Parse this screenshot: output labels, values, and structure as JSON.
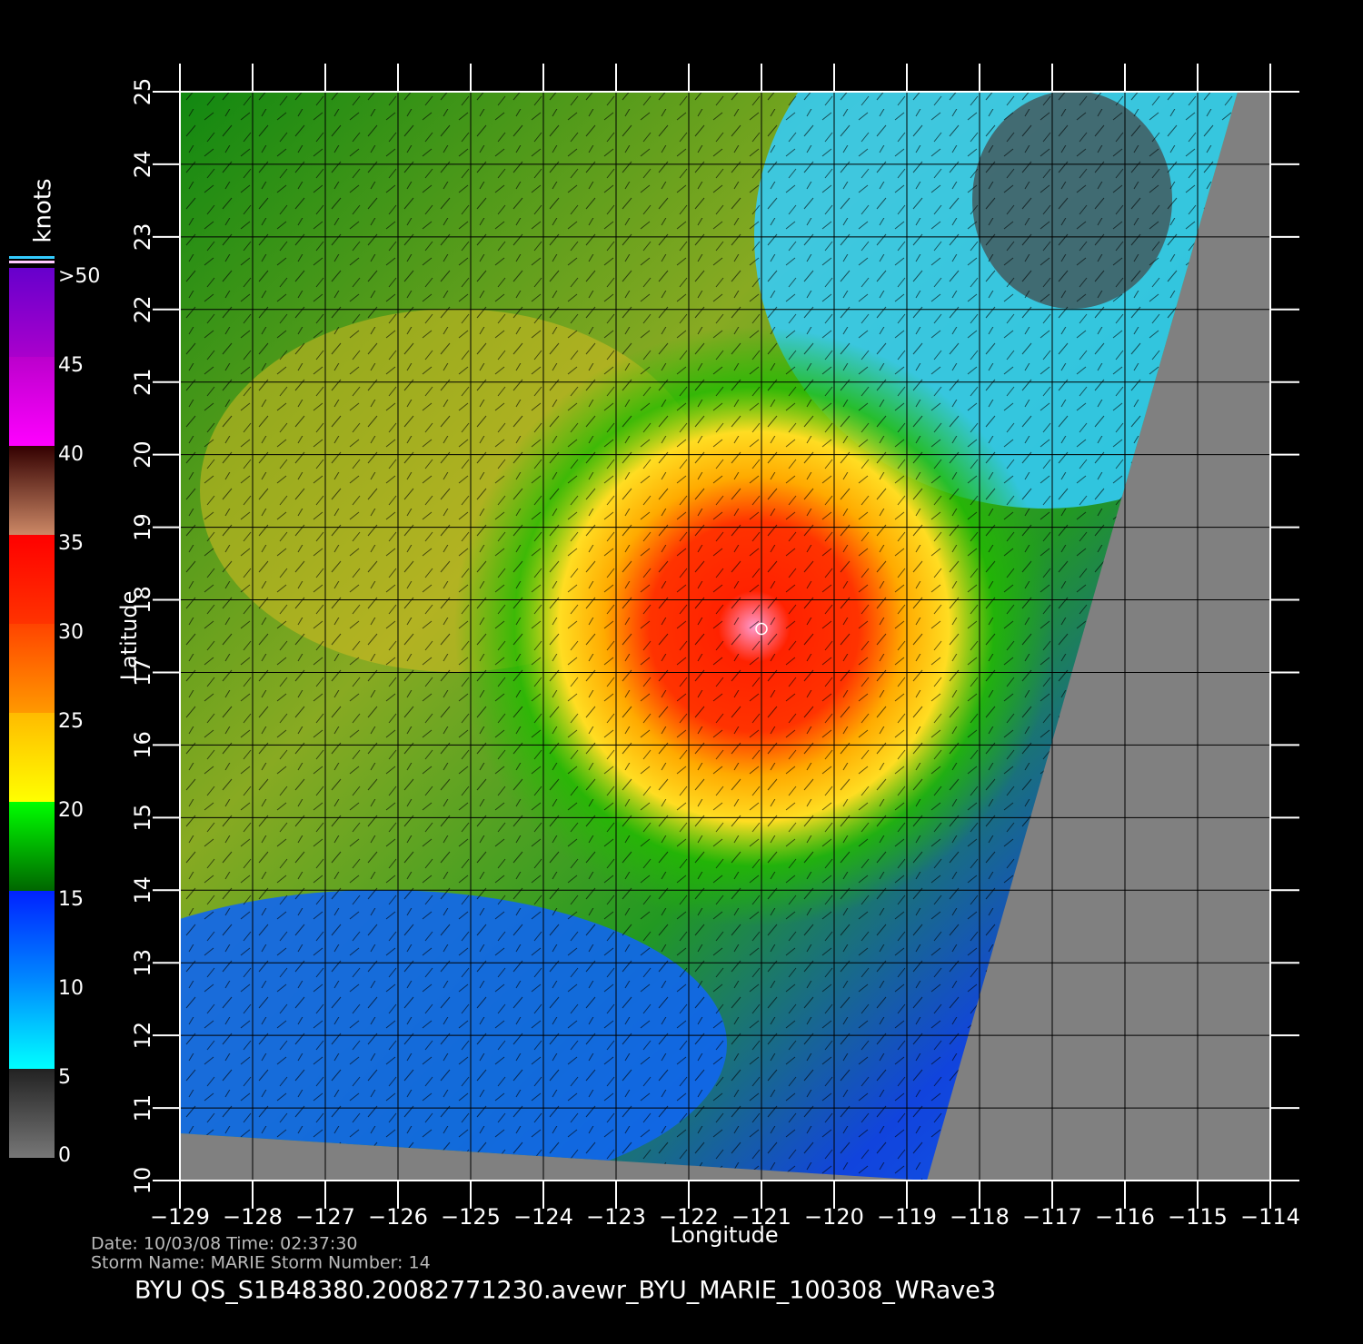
{
  "map": {
    "x_label": "Longitude",
    "y_label": "Latitude",
    "xlim": [
      -129,
      -114
    ],
    "ylim": [
      10,
      25
    ],
    "xticks": [
      {
        "value": -129,
        "label": "−129"
      },
      {
        "value": -128,
        "label": "−128"
      },
      {
        "value": -127,
        "label": "−127"
      },
      {
        "value": -126,
        "label": "−126"
      },
      {
        "value": -125,
        "label": "−125"
      },
      {
        "value": -124,
        "label": "−124"
      },
      {
        "value": -123,
        "label": "−123"
      },
      {
        "value": -122,
        "label": "−122"
      },
      {
        "value": -121,
        "label": "−121"
      },
      {
        "value": -120,
        "label": "−120"
      },
      {
        "value": -119,
        "label": "−119"
      },
      {
        "value": -118,
        "label": "−118"
      },
      {
        "value": -117,
        "label": "−117"
      },
      {
        "value": -116,
        "label": "−116"
      },
      {
        "value": -115,
        "label": "−115"
      },
      {
        "value": -114,
        "label": "−114"
      }
    ],
    "yticks": [
      10,
      11,
      12,
      13,
      14,
      15,
      16,
      17,
      18,
      19,
      20,
      21,
      22,
      23,
      24,
      25
    ],
    "storm_center": [
      -121,
      17.6
    ]
  },
  "colorbar": {
    "title": "knots",
    "lim": [
      0,
      50
    ],
    "ticks": [
      0,
      5,
      10,
      15,
      20,
      25,
      30,
      35,
      40,
      45,
      {
        "value": 50,
        "label": ">50"
      }
    ],
    "segments": [
      {
        "from": 0,
        "to": 5,
        "colors": [
          "#777777",
          "#222222"
        ]
      },
      {
        "from": 5,
        "to": 10,
        "colors": [
          "#00ffff",
          "#0088ff"
        ]
      },
      {
        "from": 10,
        "to": 15,
        "colors": [
          "#0088ff",
          "#0022ff"
        ]
      },
      {
        "from": 15,
        "to": 20,
        "colors": [
          "#006600",
          "#00ff00"
        ]
      },
      {
        "from": 20,
        "to": 25,
        "colors": [
          "#ffff00",
          "#ffbb00"
        ]
      },
      {
        "from": 25,
        "to": 30,
        "colors": [
          "#ff9900",
          "#ff4400"
        ]
      },
      {
        "from": 30,
        "to": 35,
        "colors": [
          "#ff3300",
          "#ff0000"
        ]
      },
      {
        "from": 35,
        "to": 40,
        "colors": [
          "#cc8866",
          "#330000"
        ]
      },
      {
        "from": 40,
        "to": 45,
        "colors": [
          "#ff00ff",
          "#bb00cc"
        ]
      },
      {
        "from": 45,
        "to": 50,
        "colors": [
          "#aa00cc",
          "#6600cc"
        ]
      }
    ]
  },
  "footer": {
    "line1": "Date: 10/03/08   Time: 02:37:30",
    "line2": "Storm  Name: MARIE    Storm  Number: 14",
    "file": "BYU  QS_S1B48380.20082771230.avewr_BYU_MARIE_100308_WRave3"
  }
}
